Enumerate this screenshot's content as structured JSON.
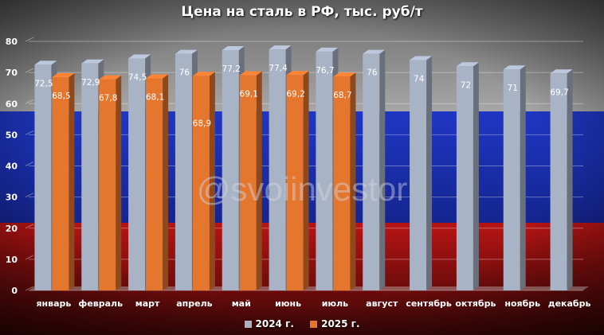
{
  "chart_data": {
    "type": "bar",
    "title": "Цена на сталь в РФ, тыс. руб/т",
    "categories": [
      "январь",
      "февраль",
      "март",
      "апрель",
      "май",
      "июнь",
      "июль",
      "август",
      "сентябрь",
      "октябрь",
      "ноябрь",
      "декабрь"
    ],
    "series": [
      {
        "name": "2024 г.",
        "values": [
          72.5,
          72.9,
          74.5,
          76,
          77.2,
          77.4,
          76.7,
          76,
          74,
          72,
          71,
          69.7
        ],
        "labels": [
          "72,5",
          "72,9",
          "74,5",
          "76",
          "77,2",
          "77,4",
          "76,7",
          "76",
          "74",
          "72",
          "71",
          "69,7"
        ],
        "color": "#a9b3c6"
      },
      {
        "name": "2025 г.",
        "values": [
          68.5,
          67.8,
          68.1,
          68.9,
          69.1,
          69.2,
          68.7,
          null,
          null,
          null,
          null,
          null
        ],
        "labels": [
          "68,5",
          "67,8",
          "68,1",
          "68,9",
          "69,1",
          "69,2",
          "68,7",
          "",
          "",
          "",
          "",
          ""
        ],
        "color": "#e4762e"
      }
    ],
    "yticks": [
      0,
      10,
      20,
      30,
      40,
      50,
      60,
      70,
      80
    ],
    "ylim": [
      0,
      80
    ],
    "grid": true,
    "legend": "bottom",
    "xlabel": "",
    "ylabel": ""
  },
  "watermark": "@svoiinvestor",
  "colors": {
    "flag_white": "#8e8e8e",
    "flag_blue": "#1d33bb",
    "flag_red": "#a01010"
  }
}
